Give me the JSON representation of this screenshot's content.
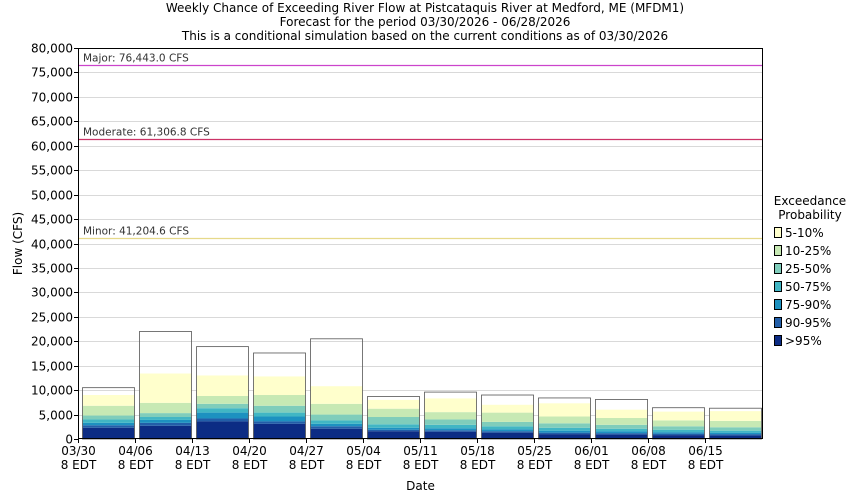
{
  "chart_data": {
    "type": "bar",
    "title": [
      "Weekly Chance of Exceeding River Flow at Pistcataquis River at Medford, ME (MFDM1)",
      "Forecast for the period 03/30/2026 - 06/28/2026",
      "This is a conditional simulation based on the current conditions as of 03/30/2026"
    ],
    "xlabel": "Date",
    "ylabel": "Flow (CFS)",
    "ylim": [
      0,
      80000
    ],
    "yticks": [
      0,
      5000,
      10000,
      15000,
      20000,
      25000,
      30000,
      35000,
      40000,
      45000,
      50000,
      55000,
      60000,
      65000,
      70000,
      75000,
      80000
    ],
    "ytick_labels": [
      "0",
      "5,000",
      "10,000",
      "15,000",
      "20,000",
      "25,000",
      "30,000",
      "35,000",
      "40,000",
      "45,000",
      "50,000",
      "55,000",
      "60,000",
      "65,000",
      "70,000",
      "75,000",
      "80,000"
    ],
    "categories": [
      [
        "03/30",
        "8 EDT"
      ],
      [
        "04/06",
        "8 EDT"
      ],
      [
        "04/13",
        "8 EDT"
      ],
      [
        "04/20",
        "8 EDT"
      ],
      [
        "04/27",
        "8 EDT"
      ],
      [
        "05/04",
        "8 EDT"
      ],
      [
        "05/11",
        "8 EDT"
      ],
      [
        "05/18",
        "8 EDT"
      ],
      [
        "05/25",
        "8 EDT"
      ],
      [
        "06/01",
        "8 EDT"
      ],
      [
        "06/08",
        "8 EDT"
      ],
      [
        "06/15",
        "8 EDT"
      ]
    ],
    "grid": true,
    "legend_position": "right",
    "legend": {
      "title": [
        "Exceedance",
        "Probability"
      ],
      "items": [
        {
          "label": "5-10%",
          "color": "#ffffcc"
        },
        {
          "label": "10-25%",
          "color": "#c7e9b4"
        },
        {
          "label": "25-50%",
          "color": "#7fcdbb"
        },
        {
          "label": "50-75%",
          "color": "#41b6c4"
        },
        {
          "label": "75-90%",
          "color": "#1d91c0"
        },
        {
          "label": "90-95%",
          "color": "#225ea8"
        },
        {
          "label": ">95%",
          "color": "#0c2c84"
        }
      ]
    },
    "flood_levels": [
      {
        "label": "Major: 76,443.0 CFS",
        "value": 76443.0,
        "color": "#cc44cc"
      },
      {
        "label": "Moderate: 61,306.8 CFS",
        "value": 61306.8,
        "color": "#cc3366"
      },
      {
        "label": "Minor: 41,204.6 CFS",
        "value": 41204.6,
        "color": "#e6d98a"
      }
    ],
    "boxes": [
      {
        "bounds": [
          2300,
          2800,
          3300,
          4000,
          4800,
          6800,
          9000,
          10500
        ]
      },
      {
        "bounds": [
          2700,
          3300,
          3900,
          4500,
          5300,
          7400,
          13400,
          22000
        ]
      },
      {
        "bounds": [
          3600,
          4200,
          5400,
          6300,
          7200,
          8800,
          13000,
          18900
        ]
      },
      {
        "bounds": [
          3100,
          3600,
          4600,
          5400,
          6800,
          9000,
          12800,
          17600
        ]
      },
      {
        "bounds": [
          2100,
          2600,
          3100,
          3800,
          5000,
          7200,
          10800,
          20500
        ]
      },
      {
        "bounds": [
          1600,
          1900,
          2300,
          3000,
          4500,
          6200,
          8000,
          8700
        ]
      },
      {
        "bounds": [
          1500,
          1800,
          2200,
          2900,
          4000,
          5500,
          8300,
          9600
        ]
      },
      {
        "bounds": [
          1300,
          1600,
          2000,
          2600,
          3500,
          5400,
          7000,
          9000
        ]
      },
      {
        "bounds": [
          1000,
          1300,
          1700,
          2300,
          3200,
          4600,
          7300,
          8400
        ]
      },
      {
        "bounds": [
          900,
          1200,
          1600,
          2100,
          2900,
          4300,
          6000,
          8100
        ]
      },
      {
        "bounds": [
          800,
          1100,
          1400,
          1900,
          2600,
          3800,
          5600,
          6400
        ]
      },
      {
        "bounds": [
          700,
          1000,
          1300,
          1700,
          2400,
          3700,
          5700,
          6300
        ]
      }
    ]
  }
}
